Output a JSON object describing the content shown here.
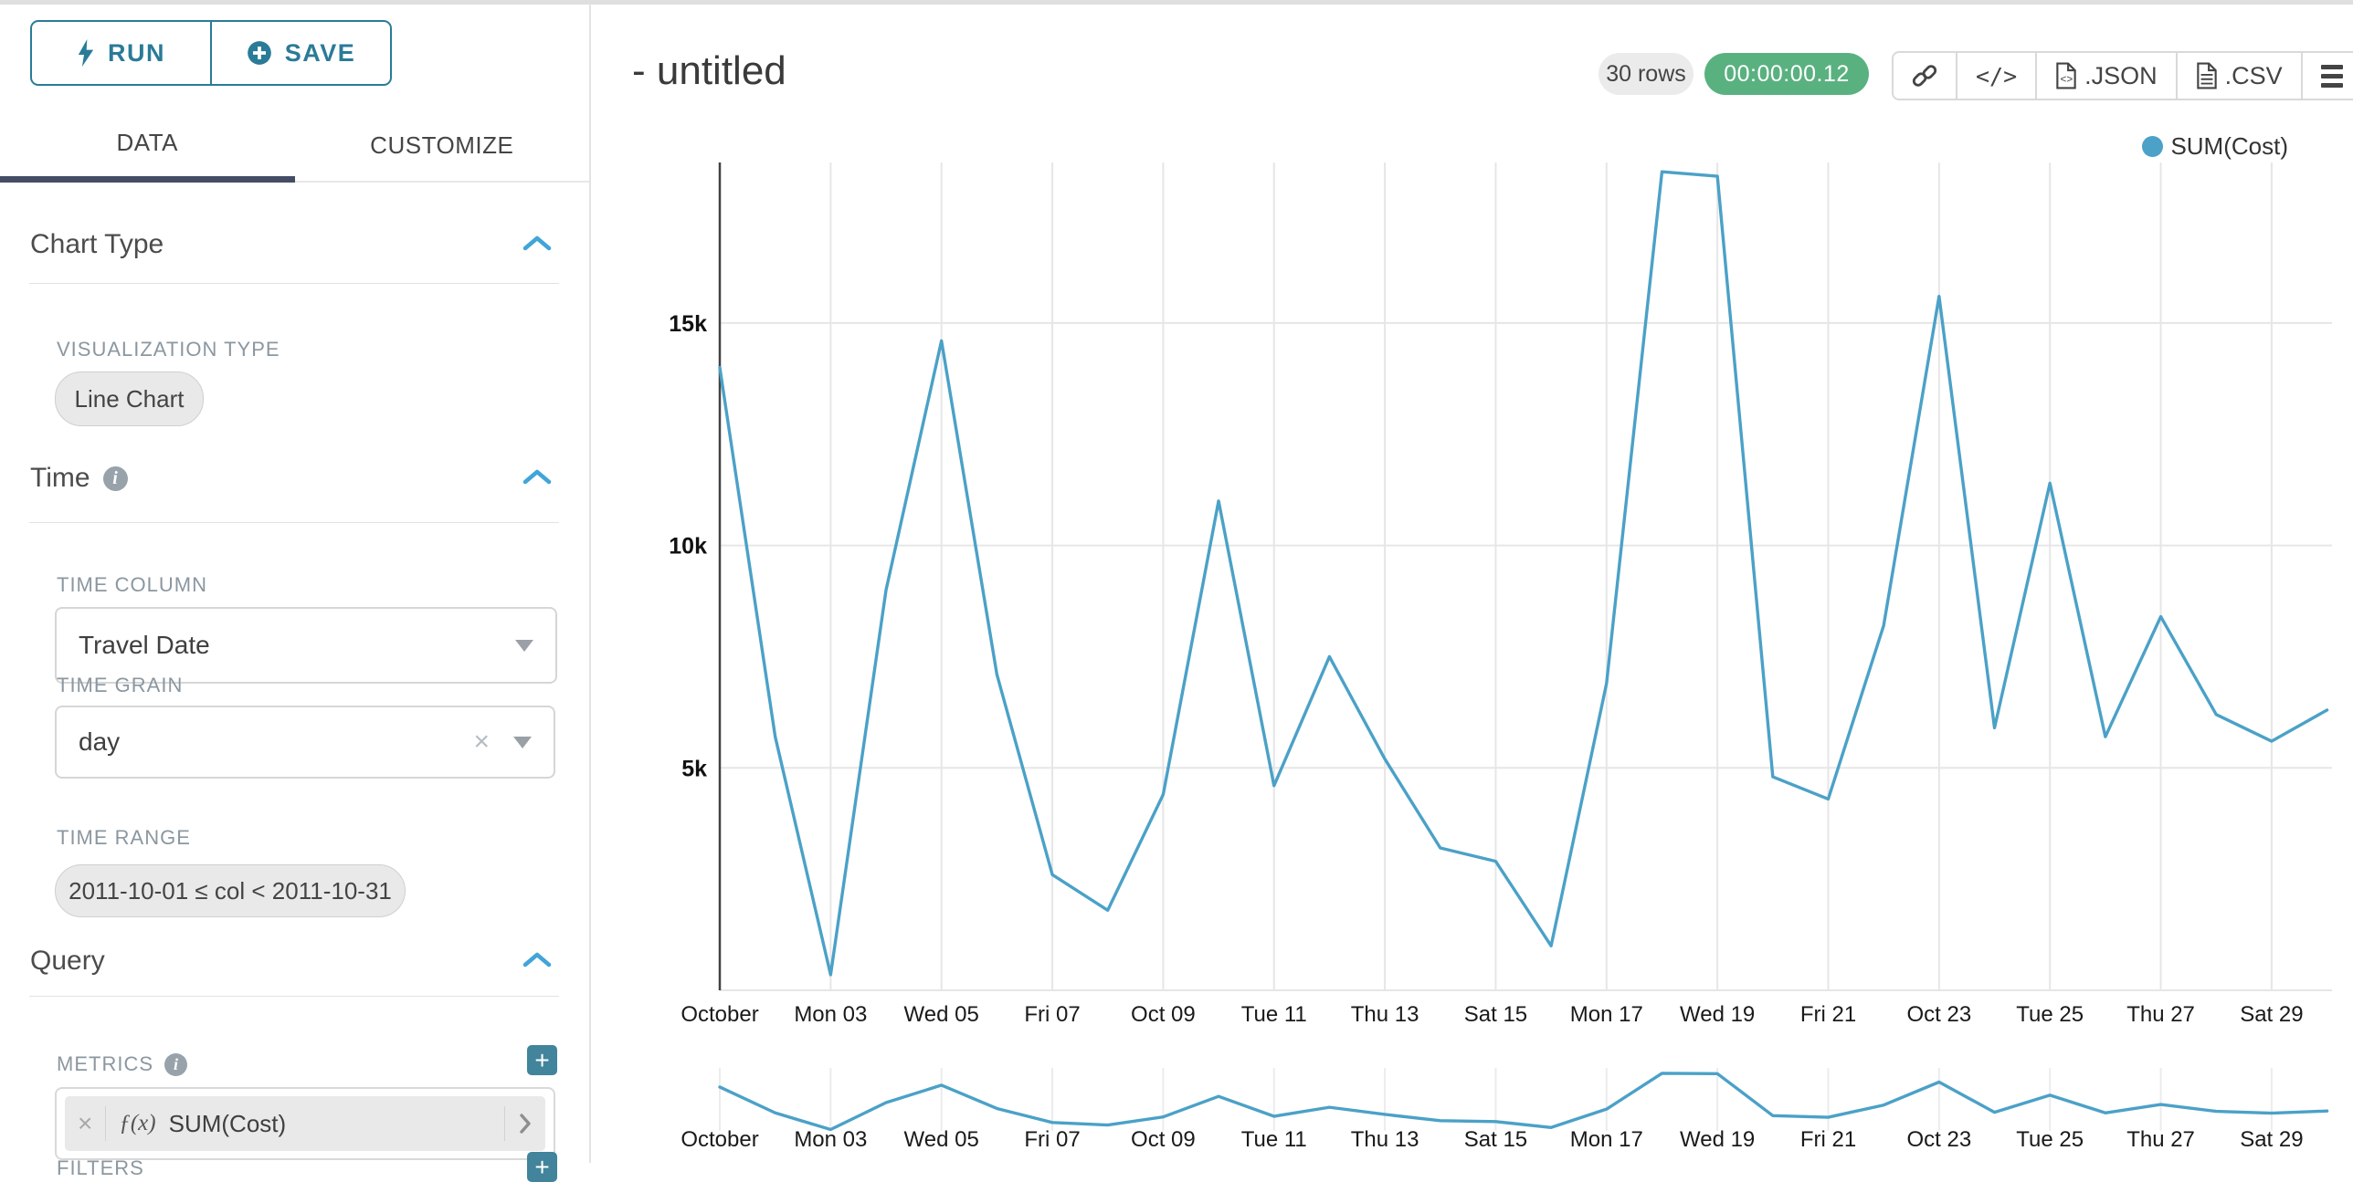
{
  "colors": {
    "accent_teal": "#2a7b97",
    "line": "#4ba1c7",
    "green_badge": "#5ab180",
    "tab_active_underline": "#454d66",
    "chevron_blue": "#41a5d8",
    "plus_button": "#41849b",
    "grid": "#e6e6e6",
    "axis_line": "#424242",
    "pill_bg": "#e9e9e9"
  },
  "sidebar": {
    "run_button": "RUN",
    "save_button": "SAVE",
    "tabs": {
      "data": "DATA",
      "customize": "CUSTOMIZE"
    },
    "chart_type_section": {
      "title": "Chart Type",
      "visualization_type_label": "VISUALIZATION TYPE",
      "visualization_type_value": "Line Chart"
    },
    "time_section": {
      "title": "Time",
      "time_column_label": "TIME COLUMN",
      "time_column_value": "Travel Date",
      "time_grain_label": "TIME GRAIN",
      "time_grain_value": "day",
      "time_range_label": "TIME RANGE",
      "time_range_value": "2011-10-01 ≤ col < 2011-10-31"
    },
    "query_section": {
      "title": "Query",
      "metrics_label": "METRICS",
      "metric_function_badge": "ƒ(x)",
      "metric_value": "SUM(Cost)",
      "filters_label": "FILTERS"
    }
  },
  "header": {
    "title": "- untitled",
    "rows_badge": "30 rows",
    "timer_badge": "00:00:00.12",
    "export_json_label": ".JSON",
    "export_csv_label": ".CSV"
  },
  "chart_data": {
    "type": "line",
    "title": "",
    "xlabel": "",
    "ylabel": "",
    "legend": {
      "label": "SUM(Cost)",
      "position": "top-right"
    },
    "grid": true,
    "ylim": [
      0,
      18600
    ],
    "ytick_values": [
      5000,
      10000,
      15000
    ],
    "ytick_labels": [
      "5k",
      "10k",
      "15k"
    ],
    "xtick_day_indices": [
      0,
      2,
      4,
      6,
      8,
      10,
      12,
      14,
      16,
      18,
      20,
      22,
      24,
      26,
      28
    ],
    "xtick_labels": [
      "October",
      "Mon 03",
      "Wed 05",
      "Fri 07",
      "Oct 09",
      "Tue 11",
      "Thu 13",
      "Sat 15",
      "Mon 17",
      "Wed 19",
      "Fri 21",
      "Oct 23",
      "Tue 25",
      "Thu 27",
      "Sat 29"
    ],
    "series": [
      {
        "name": "SUM(Cost)",
        "values": [
          14000,
          5700,
          350,
          9000,
          14600,
          7100,
          2600,
          1800,
          4400,
          11000,
          4600,
          7500,
          5200,
          3200,
          2900,
          1000,
          6900,
          18400,
          18300,
          4800,
          4300,
          8200,
          15600,
          5900,
          11400,
          5700,
          8400,
          6200,
          5600,
          6300
        ]
      }
    ]
  }
}
